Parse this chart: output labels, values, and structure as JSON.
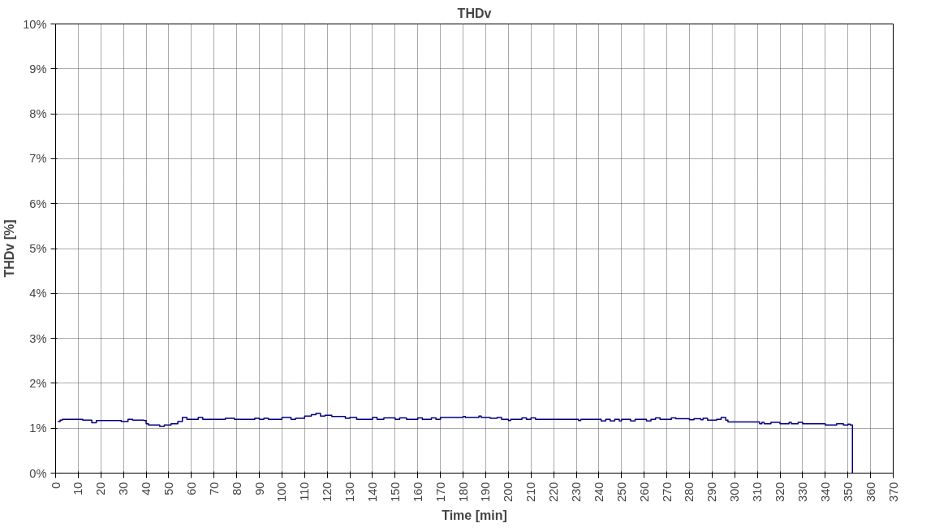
{
  "chart_data": {
    "type": "step",
    "title": "THDv",
    "xlabel": "Time [min]",
    "ylabel": "THDv [%]",
    "xlim": [
      0,
      370
    ],
    "xticks": [
      0,
      10,
      20,
      30,
      40,
      50,
      60,
      70,
      80,
      90,
      100,
      110,
      120,
      130,
      140,
      150,
      160,
      170,
      180,
      190,
      200,
      210,
      220,
      230,
      240,
      250,
      260,
      270,
      280,
      290,
      300,
      310,
      320,
      330,
      340,
      350,
      360,
      370
    ],
    "ylim": [
      0,
      10
    ],
    "yticks": [
      {
        "value": 0,
        "label": "0%"
      },
      {
        "value": 1,
        "label": "1%"
      },
      {
        "value": 2,
        "label": "2%"
      },
      {
        "value": 3,
        "label": "3%"
      },
      {
        "value": 4,
        "label": "4%"
      },
      {
        "value": 5,
        "label": "5%"
      },
      {
        "value": 6,
        "label": "6%"
      },
      {
        "value": 7,
        "label": "7%"
      },
      {
        "value": 8,
        "label": "8%"
      },
      {
        "value": 9,
        "label": "9%"
      },
      {
        "value": 10,
        "label": "10%"
      }
    ],
    "grid": true,
    "line_style": "solid",
    "marker": "none",
    "series": [
      {
        "color": "#000080",
        "x": [
          1,
          2,
          3,
          10,
          12,
          15,
          16,
          18,
          27,
          29,
          32,
          34,
          39,
          40,
          41,
          45,
          46,
          48,
          51,
          54,
          56,
          58,
          63,
          65,
          75,
          77,
          79,
          88,
          90,
          92,
          94,
          100,
          104,
          106,
          110,
          113,
          115,
          117,
          119,
          122,
          128,
          130,
          133,
          140,
          142,
          145,
          150,
          152,
          155,
          160,
          162,
          166,
          168,
          170,
          180,
          181,
          187,
          188,
          192,
          195,
          197,
          200,
          201,
          206,
          208,
          210,
          212,
          218,
          230,
          231,
          232,
          240,
          241,
          243,
          245,
          247,
          249,
          250,
          254,
          256,
          261,
          263,
          265,
          267,
          272,
          274,
          280,
          282,
          285,
          286,
          288,
          292,
          294,
          296,
          297,
          310,
          311,
          312,
          313,
          316,
          320,
          324,
          325,
          328,
          330,
          340,
          345,
          348,
          350,
          351,
          352
        ],
        "values": [
          1.15,
          1.18,
          1.2,
          1.2,
          1.18,
          1.18,
          1.12,
          1.17,
          1.17,
          1.15,
          1.2,
          1.18,
          1.17,
          1.1,
          1.07,
          1.07,
          1.04,
          1.07,
          1.1,
          1.15,
          1.24,
          1.2,
          1.24,
          1.2,
          1.22,
          1.22,
          1.2,
          1.22,
          1.2,
          1.22,
          1.2,
          1.24,
          1.2,
          1.22,
          1.27,
          1.3,
          1.33,
          1.27,
          1.29,
          1.26,
          1.22,
          1.24,
          1.2,
          1.24,
          1.2,
          1.23,
          1.2,
          1.23,
          1.2,
          1.23,
          1.2,
          1.23,
          1.2,
          1.24,
          1.26,
          1.24,
          1.27,
          1.24,
          1.22,
          1.24,
          1.2,
          1.17,
          1.2,
          1.23,
          1.2,
          1.23,
          1.2,
          1.2,
          1.2,
          1.17,
          1.2,
          1.2,
          1.16,
          1.2,
          1.16,
          1.2,
          1.16,
          1.2,
          1.16,
          1.2,
          1.16,
          1.2,
          1.23,
          1.2,
          1.23,
          1.21,
          1.19,
          1.21,
          1.19,
          1.22,
          1.18,
          1.2,
          1.24,
          1.18,
          1.14,
          1.14,
          1.1,
          1.13,
          1.1,
          1.13,
          1.1,
          1.13,
          1.1,
          1.13,
          1.1,
          1.07,
          1.1,
          1.07,
          1.09,
          1.07,
          0
        ]
      }
    ]
  }
}
